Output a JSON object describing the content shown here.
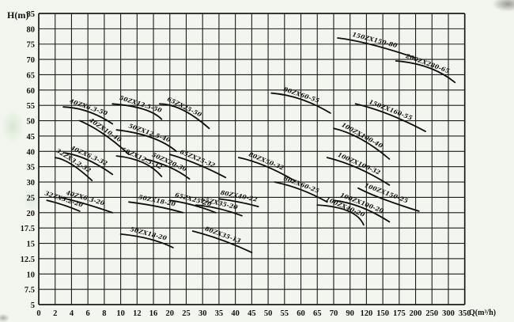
{
  "colors": {
    "background": "#f3f5ef",
    "grid": "#1c1c1c",
    "curve": "#0f0f0d",
    "text": "#14140f"
  },
  "chart_data": {
    "type": "line",
    "title": "",
    "xlabel": "Q(m³/h)",
    "ylabel": "H(m)",
    "x_scale": "segmented non-linear (one gridline per tick)",
    "y_scale": "5 m per gridline above 20, 2.5 m per gridline below 20",
    "grid": true,
    "legend": "none (labels written along curves)",
    "xlim": [
      0,
      350
    ],
    "ylim": [
      5,
      85
    ],
    "x_ticks": [
      0,
      2,
      4,
      6,
      8,
      10,
      12,
      16,
      20,
      25,
      30,
      35,
      40,
      45,
      50,
      55,
      60,
      65,
      70,
      90,
      120,
      150,
      175,
      200,
      250,
      300,
      350
    ],
    "y_ticks": [
      85,
      80,
      75,
      70,
      65,
      60,
      55,
      50,
      45,
      40,
      35,
      30,
      25,
      20,
      17.5,
      15,
      12.5,
      10,
      7.5,
      5
    ],
    "series": [
      {
        "name": "40ZX6.3-50",
        "points": [
          [
            3,
            54.5
          ],
          [
            6,
            53
          ],
          [
            9,
            49
          ]
        ]
      },
      {
        "name": "50ZX12.5-50",
        "points": [
          [
            9,
            55.5
          ],
          [
            13.5,
            53.8
          ],
          [
            18,
            50.5
          ]
        ]
      },
      {
        "name": "65ZX25-50",
        "points": [
          [
            17.5,
            55.5
          ],
          [
            24,
            53.5
          ],
          [
            32,
            47.5
          ]
        ]
      },
      {
        "name": "80ZX60-55",
        "points": [
          [
            51,
            59
          ],
          [
            60,
            57
          ],
          [
            69,
            52.5
          ]
        ]
      },
      {
        "name": "150ZX150-80",
        "points": [
          [
            75,
            77
          ],
          [
            130,
            74.8
          ],
          [
            200,
            70.5
          ]
        ]
      },
      {
        "name": "200ZX280-65",
        "points": [
          [
            170,
            69.5
          ],
          [
            240,
            67.3
          ],
          [
            320,
            62.5
          ]
        ]
      },
      {
        "name": "150ZX160-55",
        "points": [
          [
            100,
            55.5
          ],
          [
            160,
            52
          ],
          [
            230,
            46.5
          ]
        ]
      },
      {
        "name": "100ZX100-40",
        "points": [
          [
            70,
            47.5
          ],
          [
            110,
            44
          ],
          [
            160,
            37.5
          ]
        ]
      },
      {
        "name": "40ZX10-40",
        "points": [
          [
            5,
            50
          ],
          [
            8,
            45.5
          ],
          [
            11,
            39
          ]
        ]
      },
      {
        "name": "50ZX12.5-40",
        "points": [
          [
            9.5,
            47
          ],
          [
            15.5,
            44.5
          ],
          [
            22,
            40
          ]
        ]
      },
      {
        "name": "32ZX3.2-32",
        "points": [
          [
            2,
            38
          ],
          [
            4,
            35.8
          ],
          [
            6.5,
            30.5
          ]
        ]
      },
      {
        "name": "40ZX6.3-32",
        "points": [
          [
            3.2,
            39.5
          ],
          [
            6,
            37.2
          ],
          [
            9,
            32.5
          ]
        ]
      },
      {
        "name": "50ZX12.5-32",
        "points": [
          [
            9.5,
            38.5
          ],
          [
            13.5,
            36.3
          ],
          [
            18,
            31.8
          ]
        ]
      },
      {
        "name": "50ZX20-30",
        "points": [
          [
            14,
            37.5
          ],
          [
            20,
            34.8
          ],
          [
            26,
            31
          ]
        ]
      },
      {
        "name": "65ZX25-32",
        "points": [
          [
            20,
            39
          ],
          [
            28,
            36
          ],
          [
            37,
            31.5
          ]
        ]
      },
      {
        "name": "80ZX50-32",
        "points": [
          [
            41,
            38
          ],
          [
            49,
            35.3
          ],
          [
            58,
            30.5
          ]
        ]
      },
      {
        "name": "100ZX100-32",
        "points": [
          [
            68,
            38
          ],
          [
            105,
            34.5
          ],
          [
            160,
            29
          ]
        ]
      },
      {
        "name": "32ZX3.2-20",
        "points": [
          [
            1,
            24
          ],
          [
            3,
            22.5
          ],
          [
            5,
            20.5
          ]
        ]
      },
      {
        "name": "40ZX6.3-20",
        "points": [
          [
            2.5,
            25
          ],
          [
            5.5,
            23
          ],
          [
            9,
            20
          ]
        ]
      },
      {
        "name": "50ZX18-20",
        "points": [
          [
            11,
            23.5
          ],
          [
            17,
            22
          ],
          [
            24,
            20
          ]
        ]
      },
      {
        "name": "65ZX25-20",
        "points": [
          [
            20,
            24
          ],
          [
            27,
            22.5
          ],
          [
            34,
            20
          ]
        ]
      },
      {
        "name": "65ZX35-20",
        "points": [
          [
            28,
            22.5
          ],
          [
            35,
            21.3
          ],
          [
            42,
            19.5
          ]
        ]
      },
      {
        "name": "80ZX40-22",
        "points": [
          [
            35,
            24.5
          ],
          [
            41,
            23.5
          ],
          [
            47,
            22
          ]
        ]
      },
      {
        "name": "80ZX60-25",
        "points": [
          [
            52,
            30
          ],
          [
            60,
            27.5
          ],
          [
            68,
            23.5
          ]
        ]
      },
      {
        "name": "100ZX40-20",
        "points": [
          [
            65,
            22.5
          ],
          [
            88,
            20.5
          ],
          [
            115,
            18
          ]
        ]
      },
      {
        "name": "100ZX100-20",
        "points": [
          [
            70,
            24
          ],
          [
            110,
            21.8
          ],
          [
            160,
            18.5
          ]
        ]
      },
      {
        "name": "100ZX150-25",
        "points": [
          [
            105,
            28
          ],
          [
            150,
            24.5
          ],
          [
            210,
            20.5
          ]
        ]
      },
      {
        "name": "50ZX18-20",
        "points": [
          [
            10,
            16.5
          ],
          [
            15,
            15.7
          ],
          [
            21,
            14.3
          ]
        ]
      },
      {
        "name": "80ZX35-13",
        "points": [
          [
            27,
            17
          ],
          [
            36,
            15.5
          ],
          [
            45,
            13.5
          ]
        ]
      }
    ]
  }
}
